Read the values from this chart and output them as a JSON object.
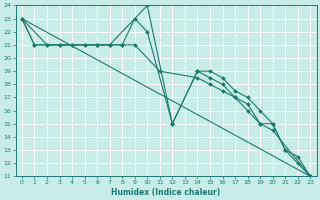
{
  "xlabel": "Humidex (Indice chaleur)",
  "xlim": [
    -0.5,
    23.5
  ],
  "ylim": [
    11,
    24
  ],
  "xticks": [
    0,
    1,
    2,
    3,
    4,
    5,
    6,
    7,
    8,
    9,
    10,
    11,
    12,
    13,
    14,
    15,
    16,
    17,
    18,
    19,
    20,
    21,
    22,
    23
  ],
  "yticks": [
    11,
    12,
    13,
    14,
    15,
    16,
    17,
    18,
    19,
    20,
    21,
    22,
    23,
    24
  ],
  "bg_color": "#c8ede8",
  "grid_color": "#b8ddd8",
  "line_color": "#1a7a6e",
  "lines": [
    {
      "x": [
        0,
        1,
        3,
        6,
        7,
        10,
        12,
        14,
        15,
        16,
        17,
        18,
        19,
        20,
        21,
        22,
        23
      ],
      "y": [
        23,
        21,
        21,
        21,
        21,
        24,
        15,
        19,
        19,
        18.5,
        17.5,
        17,
        16,
        15,
        13,
        12.5,
        11
      ]
    },
    {
      "x": [
        0,
        2,
        3,
        4,
        5,
        6,
        7,
        8,
        9,
        10,
        12,
        14,
        15,
        16,
        17,
        18,
        19,
        20,
        21,
        22,
        23
      ],
      "y": [
        23,
        21,
        21,
        21,
        21,
        21,
        21,
        21,
        23,
        22,
        15,
        19,
        18.5,
        18,
        17,
        16.5,
        15,
        15,
        13,
        12,
        11
      ]
    },
    {
      "x": [
        0,
        1,
        2,
        3,
        4,
        5,
        6,
        7,
        8,
        9,
        11,
        14,
        15,
        16,
        17,
        18,
        19,
        20,
        23
      ],
      "y": [
        23,
        21,
        21,
        21,
        21,
        21,
        21,
        21,
        21,
        21,
        19,
        18.5,
        18,
        17.5,
        17,
        16,
        15,
        14.5,
        11
      ]
    },
    {
      "x": [
        0,
        23
      ],
      "y": [
        23,
        11
      ]
    }
  ]
}
